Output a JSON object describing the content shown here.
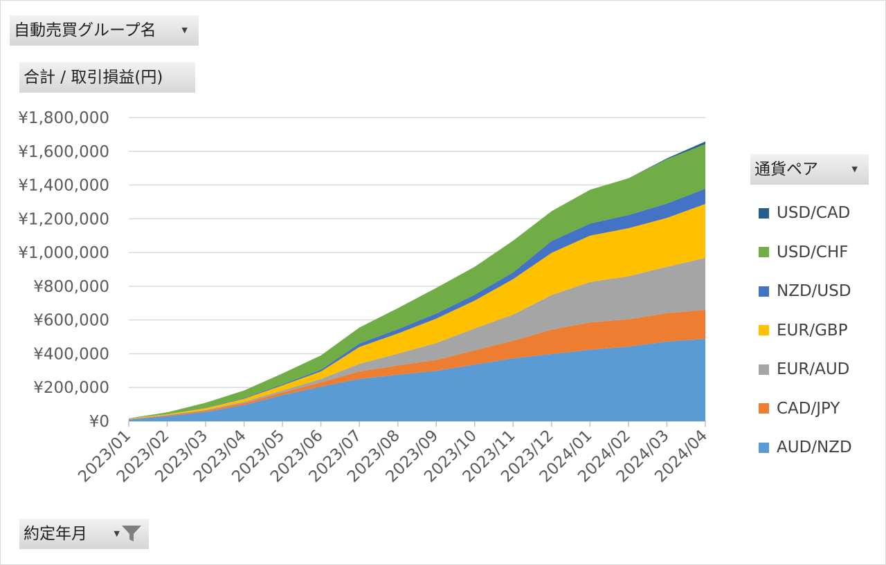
{
  "field_buttons": {
    "group": "自動売買グループ名",
    "sum": "合計 / 取引損益(円)",
    "legend_header": "通貨ペア",
    "date": "約定年月"
  },
  "icons": {
    "dropdown": "dropdown-arrow-icon",
    "filter": "filter-icon"
  },
  "chart_data": {
    "type": "area",
    "stacked": true,
    "title": "",
    "xlabel": "",
    "ylabel": "",
    "ylim": [
      0,
      1800000
    ],
    "y_ticks": [
      0,
      200000,
      400000,
      600000,
      800000,
      1000000,
      1200000,
      1400000,
      1600000,
      1800000
    ],
    "y_tick_labels": [
      "¥0",
      "¥200,000",
      "¥400,000",
      "¥600,000",
      "¥800,000",
      "¥1,000,000",
      "¥1,200,000",
      "¥1,400,000",
      "¥1,600,000",
      "¥1,800,000"
    ],
    "grid": true,
    "legend_position": "right",
    "categories": [
      "2023/01",
      "2023/02",
      "2023/03",
      "2023/04",
      "2023/05",
      "2023/06",
      "2023/07",
      "2023/08",
      "2023/09",
      "2023/10",
      "2023/11",
      "2023/12",
      "2024/01",
      "2024/02",
      "2024/03",
      "2024/04"
    ],
    "series": [
      {
        "name": "AUD/NZD",
        "color": "#5b9bd5",
        "values": [
          10000,
          30000,
          55000,
          95000,
          155000,
          205000,
          250000,
          275000,
          298000,
          335000,
          372000,
          398000,
          423000,
          442000,
          472000,
          488000
        ]
      },
      {
        "name": "CAD/JPY",
        "color": "#ed7d31",
        "values": [
          2000,
          5000,
          8000,
          12000,
          15000,
          25000,
          45000,
          55000,
          65000,
          85000,
          105000,
          145000,
          162000,
          162000,
          168000,
          172000
        ]
      },
      {
        "name": "EUR/AUD",
        "color": "#a5a5a5",
        "values": [
          1000,
          2000,
          4000,
          8000,
          12000,
          20000,
          45000,
          70000,
          100000,
          130000,
          155000,
          205000,
          240000,
          255000,
          275000,
          308000
        ]
      },
      {
        "name": "EUR/GBP",
        "color": "#ffc000",
        "values": [
          2000,
          4000,
          10000,
          18000,
          30000,
          45000,
          100000,
          120000,
          145000,
          165000,
          210000,
          250000,
          275000,
          285000,
          290000,
          320000
        ]
      },
      {
        "name": "NZD/USD",
        "color": "#4472c4",
        "values": [
          0,
          1000,
          2000,
          4000,
          6000,
          10000,
          20000,
          25000,
          30000,
          35000,
          40000,
          70000,
          72000,
          78000,
          85000,
          90000
        ]
      },
      {
        "name": "USD/CHF",
        "color": "#70ad47",
        "values": [
          2000,
          10000,
          30000,
          45000,
          65000,
          85000,
          95000,
          125000,
          152000,
          165000,
          188000,
          177000,
          200000,
          218000,
          263000,
          265000
        ]
      },
      {
        "name": "USD/CAD",
        "color": "#255e91",
        "values": [
          0,
          0,
          0,
          0,
          0,
          0,
          0,
          0,
          0,
          0,
          0,
          0,
          0,
          0,
          5000,
          15000
        ]
      }
    ],
    "legend_order": [
      "USD/CAD",
      "USD/CHF",
      "NZD/USD",
      "EUR/GBP",
      "EUR/AUD",
      "CAD/JPY",
      "AUD/NZD"
    ]
  }
}
